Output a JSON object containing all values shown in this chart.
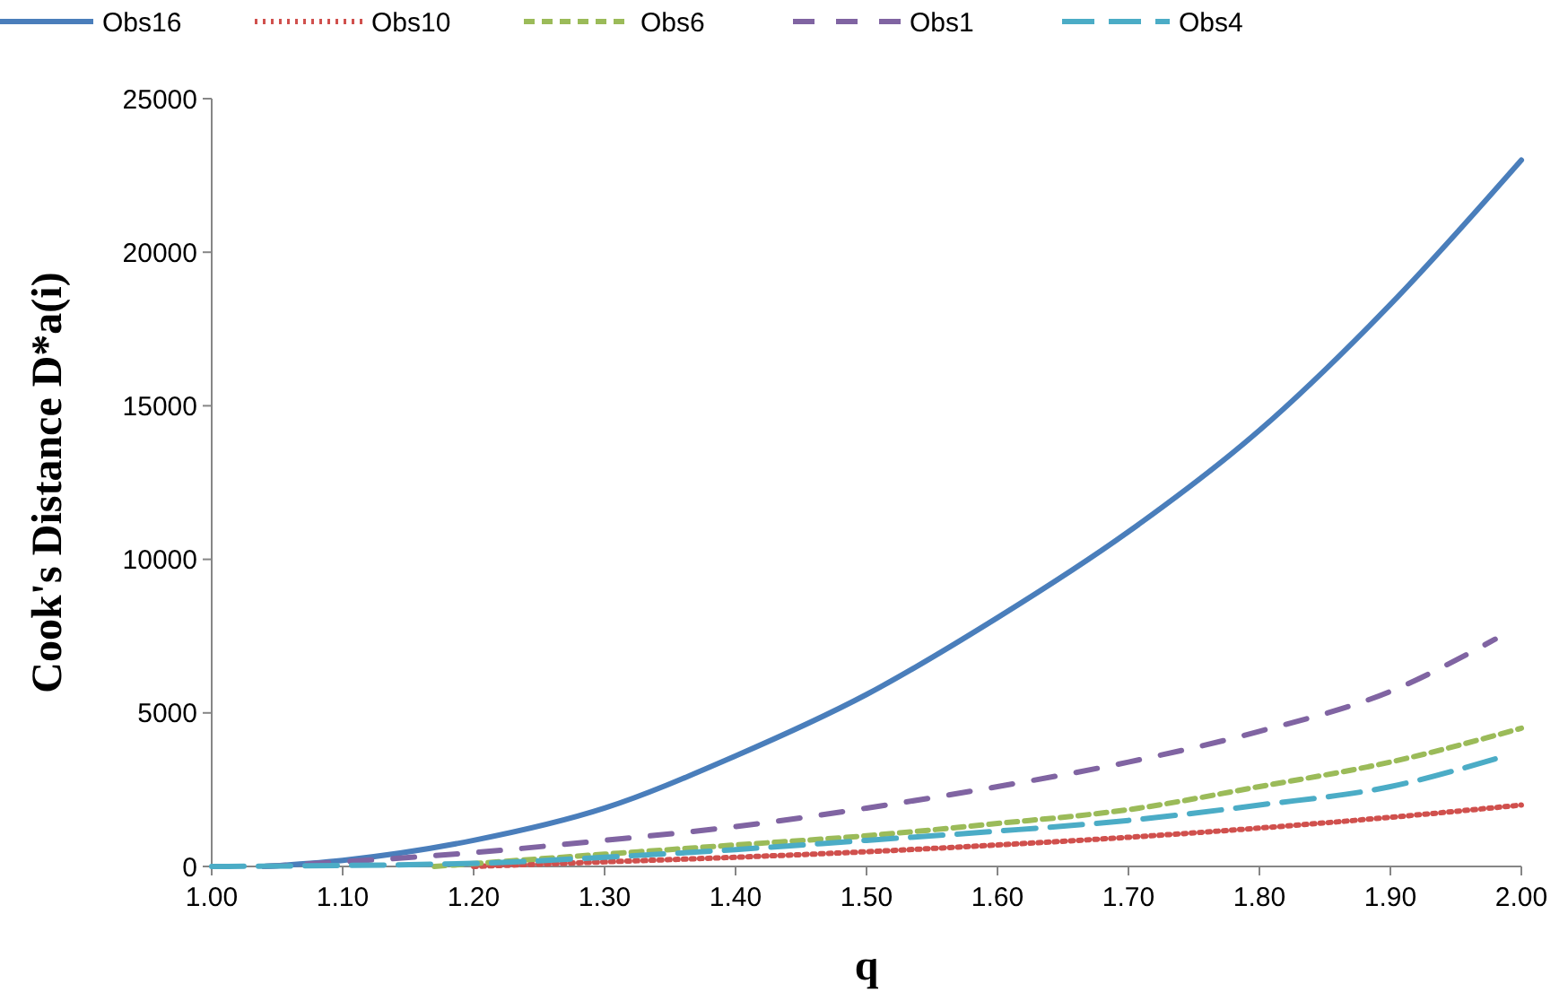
{
  "chart_data": {
    "type": "line",
    "xlabel": "q",
    "ylabel": "Cook's Distance D*a(i)",
    "legend": "top",
    "grid": false,
    "marker": "none",
    "xlim": [
      1.0,
      2.0
    ],
    "xticks": [
      {
        "value": 1.0,
        "label": "1.00"
      },
      {
        "value": 1.1,
        "label": "1.10"
      },
      {
        "value": 1.2,
        "label": "1.20"
      },
      {
        "value": 1.3,
        "label": "1.30"
      },
      {
        "value": 1.4,
        "label": "1.40"
      },
      {
        "value": 1.5,
        "label": "1.50"
      },
      {
        "value": 1.6,
        "label": "1.60"
      },
      {
        "value": 1.7,
        "label": "1.70"
      },
      {
        "value": 1.8,
        "label": "1.80"
      },
      {
        "value": 1.9,
        "label": "1.90"
      },
      {
        "value": 2.0,
        "label": "2.00"
      }
    ],
    "ylim": [
      0,
      25000
    ],
    "yticks": [
      0,
      5000,
      10000,
      15000,
      20000,
      25000
    ],
    "series": [
      {
        "name": "Obs16",
        "color": "#4a7ebb",
        "line_style": "solid",
        "x": [
          1.04,
          1.1,
          1.2,
          1.3,
          1.4,
          1.5,
          1.6,
          1.7,
          1.8,
          1.9,
          2.0
        ],
        "values": [
          0,
          200,
          850,
          1900,
          3600,
          5600,
          8100,
          10900,
          14200,
          18300,
          23000
        ]
      },
      {
        "name": "Obs10",
        "color": "#d0504d",
        "line_style": "dotted",
        "x": [
          1.2,
          1.3,
          1.4,
          1.5,
          1.6,
          1.7,
          1.8,
          1.9,
          2.0
        ],
        "values": [
          0,
          150,
          300,
          480,
          700,
          950,
          1250,
          1600,
          2000
        ]
      },
      {
        "name": "Obs6",
        "color": "#9bbb59",
        "line_style": "dashed",
        "x": [
          1.17,
          1.3,
          1.4,
          1.5,
          1.6,
          1.7,
          1.8,
          1.9,
          2.0
        ],
        "values": [
          0,
          400,
          700,
          1000,
          1400,
          1850,
          2600,
          3400,
          4500
        ]
      },
      {
        "name": "Obs1",
        "color": "#8064a2",
        "line_style": "dashed",
        "x": [
          1.04,
          1.1,
          1.2,
          1.3,
          1.4,
          1.5,
          1.6,
          1.7,
          1.8,
          1.9,
          1.98
        ],
        "values": [
          0,
          150,
          450,
          850,
          1300,
          1900,
          2600,
          3400,
          4400,
          5700,
          7400
        ]
      },
      {
        "name": "Obs4",
        "color": "#4bacc6",
        "line_style": "dashed",
        "x": [
          1.0,
          1.2,
          1.3,
          1.4,
          1.5,
          1.6,
          1.7,
          1.8,
          1.9,
          1.98
        ],
        "values": [
          0,
          100,
          300,
          550,
          850,
          1150,
          1500,
          2000,
          2600,
          3500
        ]
      }
    ]
  }
}
